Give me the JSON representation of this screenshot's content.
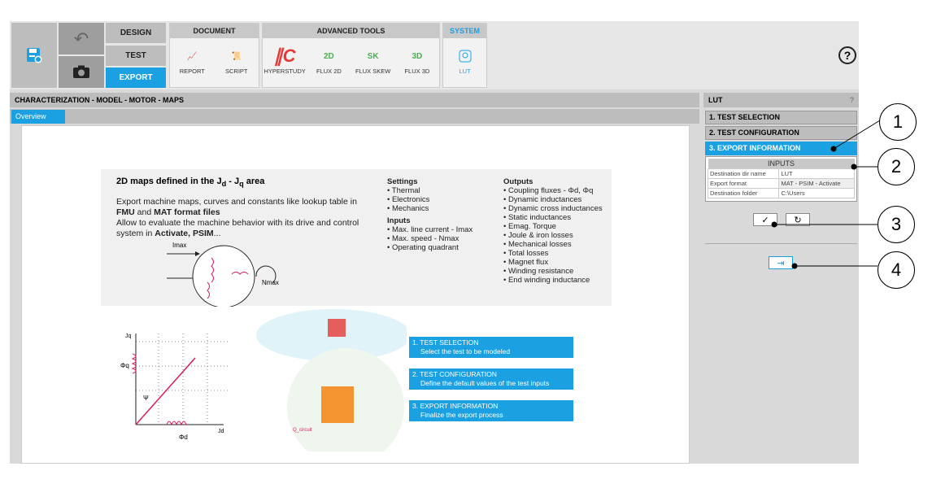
{
  "toolbar": {
    "modes": [
      "DESIGN",
      "TEST",
      "EXPORT"
    ],
    "active_mode": "EXPORT",
    "groups": {
      "document": {
        "title": "DOCUMENT",
        "items": [
          "REPORT",
          "SCRIPT"
        ]
      },
      "advanced": {
        "title": "ADVANCED TOOLS",
        "items": [
          "HYPERSTUDY",
          "FLUX 2D",
          "FLUX SKEW",
          "FLUX 3D"
        ],
        "badges": [
          "2D",
          "SK",
          "3D"
        ]
      },
      "system": {
        "title": "SYSTEM",
        "items": [
          "LUT"
        ]
      }
    },
    "help": "?"
  },
  "breadcrumb": "CHARACTERIZATION - MODEL - MOTOR - MAPS",
  "tabs": [
    {
      "label": "Overview",
      "active": true
    }
  ],
  "overview": {
    "title_pre": "2D maps defined in the ",
    "title_jd": "J",
    "title_d": "d",
    "title_sep": " - ",
    "title_jq": "J",
    "title_q": "q",
    "title_post": " area",
    "desc1_pre": "Export machine maps, curves and constants like lookup table in ",
    "fmu": "FMU",
    "and": " and ",
    "mat": "MAT format files",
    "desc2_pre": "Allow to evaluate the machine behavior with its drive and control system in ",
    "activate": "Activate, PSIM",
    "desc2_post": "...",
    "settings_title": "Settings",
    "settings": [
      "Thermal",
      "Electronics",
      "Mechanics"
    ],
    "inputs_title": "Inputs",
    "inputs": [
      "Max. line current - Imax",
      "Max. speed - Nmax",
      "Operating quadrant"
    ],
    "outputs_title": "Outputs",
    "outputs": [
      "Coupling fluxes - Φd, Φq",
      "Dynamic inductances",
      "Dynamic cross inductances",
      "Static inductances",
      "Emag. Torque",
      "Joule & iron losses",
      "Mechanical losses",
      "Total losses",
      "Magnet flux",
      "Winding resistance",
      "End winding inductance"
    ],
    "diagram_labels": {
      "imax": "Imax",
      "nmax": "Nmax",
      "phid": "Φd",
      "phiq": "Φq",
      "jd": "Jd",
      "jq": "Jq",
      "psi": "Ψ",
      "circuit": "Q_circuit"
    },
    "steps": [
      {
        "title": "1. TEST SELECTION",
        "desc": "Select the test to be modeled"
      },
      {
        "title": "2. TEST CONFIGURATION",
        "desc": "Define the default values of the test inputs"
      },
      {
        "title": "3. EXPORT INFORMATION",
        "desc": "Finalize the export process"
      }
    ]
  },
  "right_panel": {
    "title": "LUT",
    "help": "?",
    "steps": [
      "1. TEST SELECTION",
      "2. TEST CONFIGURATION",
      "3. EXPORT INFORMATION"
    ],
    "active_step": 2,
    "inputs_title": "INPUTS",
    "rows": [
      [
        "Destination dir name",
        "LUT"
      ],
      [
        "Export format",
        "MAT - PSIM - Activate"
      ],
      [
        "Destination folder",
        "C:\\Users"
      ]
    ]
  },
  "callouts": [
    "1",
    "2",
    "3",
    "4"
  ],
  "colors": {
    "accent": "#1ba1e2",
    "flux_green": "#4caf50",
    "hyperstudy_red": "#e53935"
  }
}
